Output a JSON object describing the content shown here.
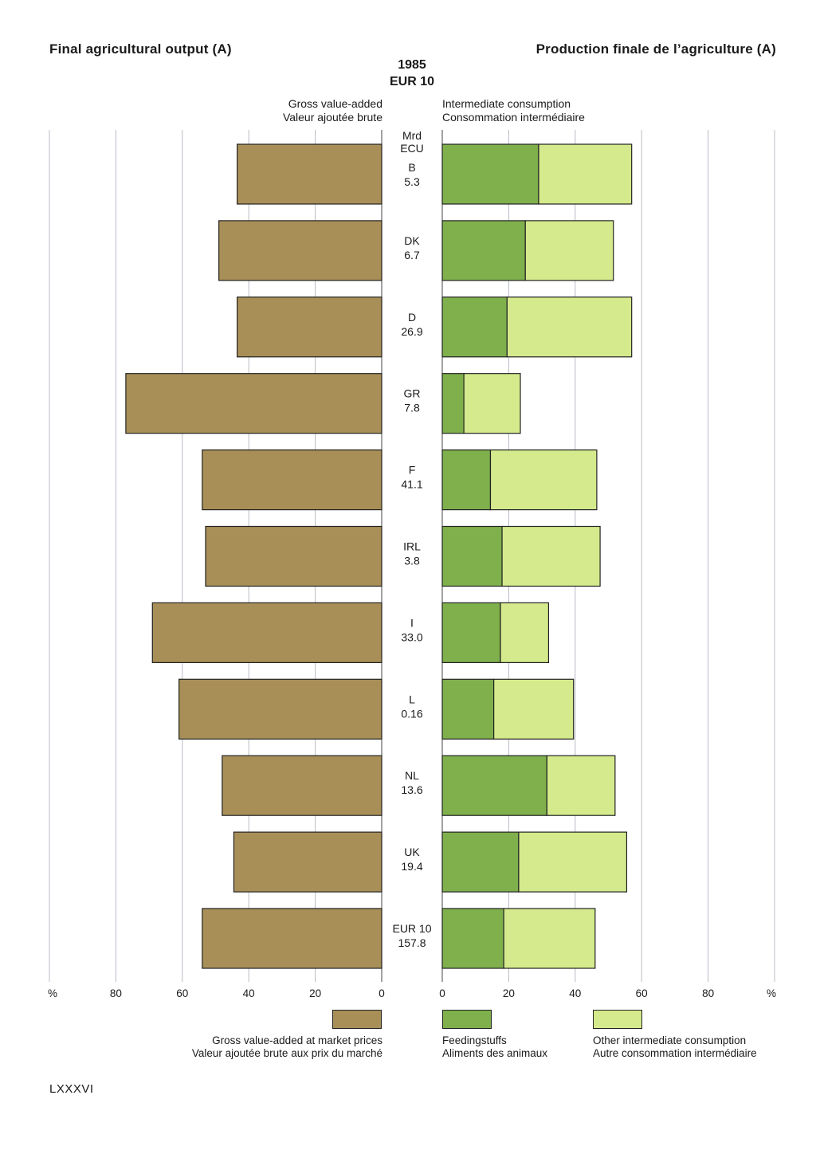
{
  "title_left": "Final agricultural output (A)",
  "title_right": "Production finale de l’agriculture (A)",
  "year": "1985",
  "region": "EUR 10",
  "header_left": [
    "Gross value-added",
    "Valeur ajoutée brute"
  ],
  "header_right": [
    "Intermediate consumption",
    "Consommation intermédiaire"
  ],
  "unit_label": [
    "Mrd",
    "ECU"
  ],
  "colors": {
    "gross_value_added": "#a88f58",
    "feedingstuffs": "#7fb04c",
    "other_consumption": "#d4ea8c",
    "grid": "#b8bcc4"
  },
  "chart_data": {
    "type": "bar",
    "orientation": "horizontal",
    "categories": [
      "B",
      "DK",
      "D",
      "GR",
      "F",
      "IRL",
      "I",
      "L",
      "NL",
      "UK",
      "EUR 10"
    ],
    "category_values": [
      "5.3",
      "6.7",
      "26.9",
      "7.8",
      "41.1",
      "3.8",
      "33.0",
      "0.16",
      "13.6",
      "19.4",
      "157.8"
    ],
    "series": [
      {
        "name": "Gross value-added at market prices",
        "side": "left",
        "values": [
          43.5,
          49,
          43.5,
          77,
          54,
          53,
          69,
          61,
          48,
          44.5,
          54
        ]
      },
      {
        "name": "Feedingstuffs",
        "side": "right",
        "values": [
          29,
          25,
          19.5,
          6.5,
          14.5,
          18,
          17.5,
          15.5,
          31.5,
          23,
          18.5
        ]
      },
      {
        "name": "Other intermediate consumption",
        "side": "right",
        "values": [
          28,
          26.5,
          37.5,
          17,
          32,
          29.5,
          14.5,
          24,
          20.5,
          32.5,
          27.5
        ]
      }
    ],
    "axis_left_ticks": [
      "%",
      "80",
      "60",
      "40",
      "20",
      "0"
    ],
    "axis_right_ticks": [
      "0",
      "20",
      "40",
      "60",
      "80",
      "%"
    ],
    "xlim": [
      0,
      100
    ],
    "grid": true
  },
  "legend": [
    {
      "key": "gross_value_added",
      "en": "Gross value-added  at market prices",
      "fr": "Valeur ajoutée brute  aux prix du marché"
    },
    {
      "key": "feedingstuffs",
      "en": "Feedingstuffs",
      "fr": "Aliments des animaux"
    },
    {
      "key": "other_consumption",
      "en": "Other intermediate consumption",
      "fr": "Autre consommation intermédiaire"
    }
  ],
  "page_number": "LXXXVI"
}
